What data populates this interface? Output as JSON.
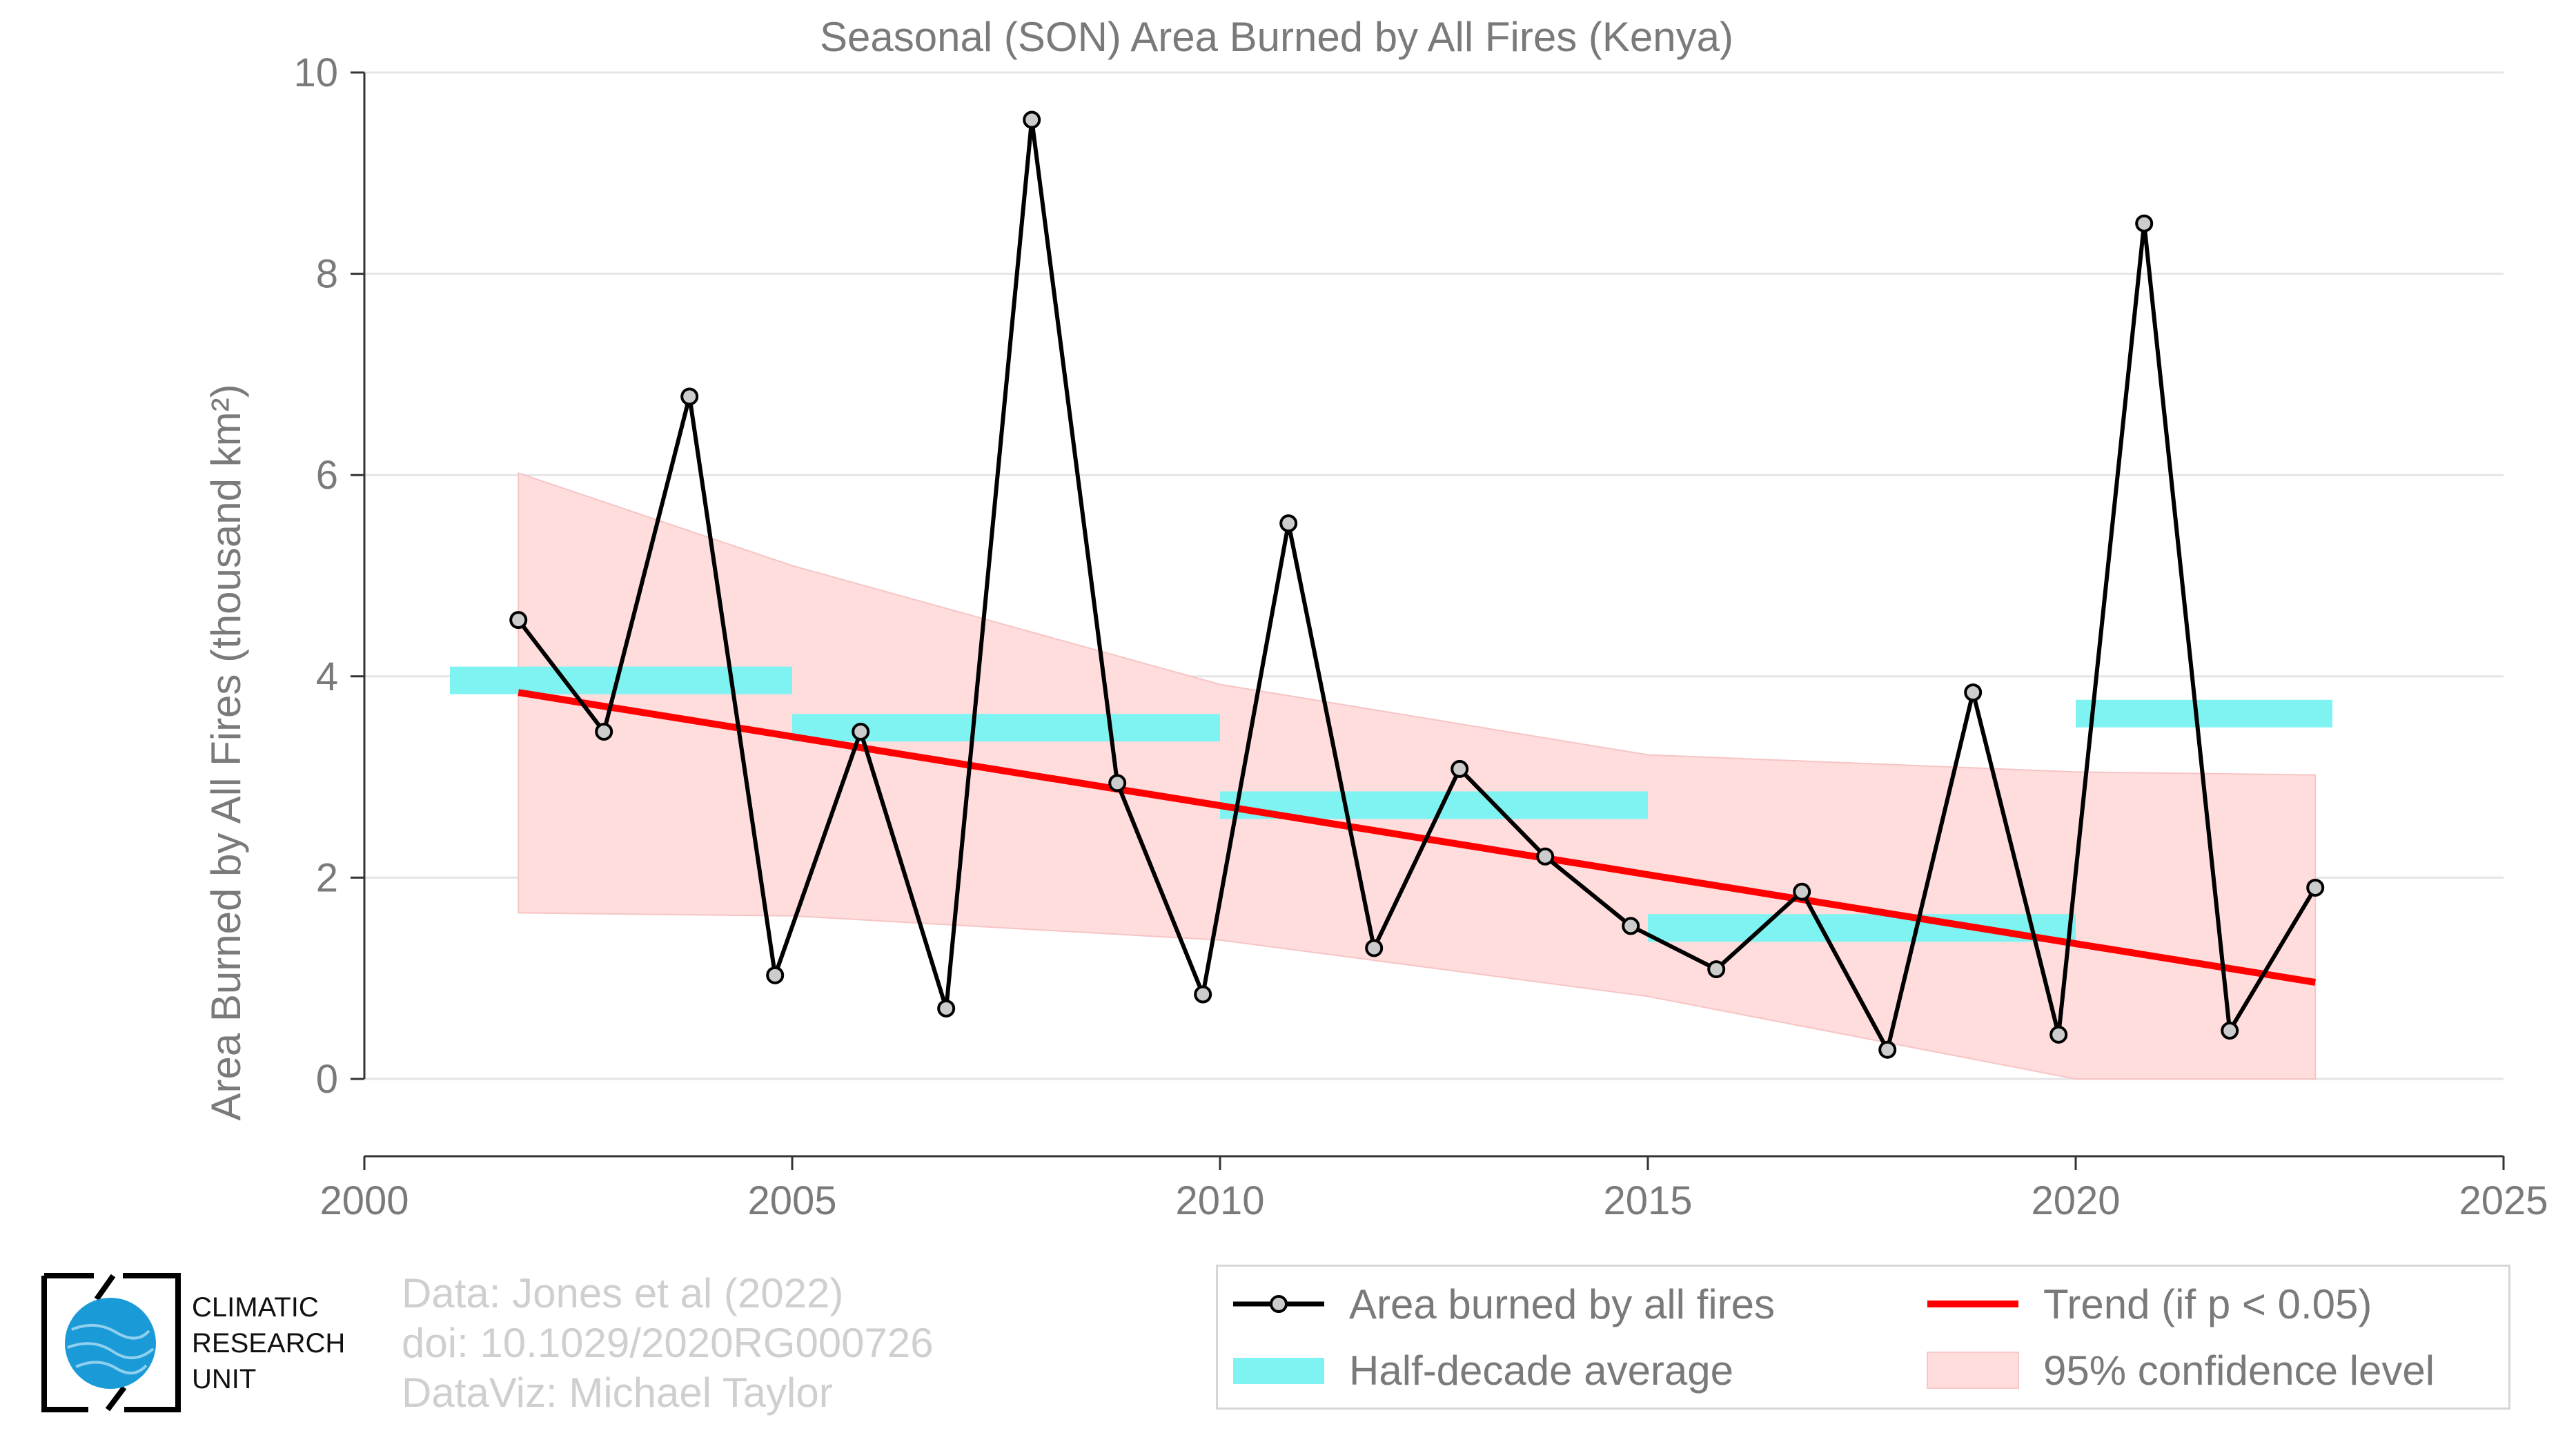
{
  "chart_data": {
    "type": "line",
    "title": "Seasonal (SON) Area Burned by All Fires (Kenya)",
    "ylabel": "Area Burned by All Fires (thousand km²)",
    "xlabel": "",
    "xlim": [
      2000,
      2025
    ],
    "ylim": [
      0,
      10
    ],
    "x_ticks": [
      "2000",
      "2005",
      "2010",
      "2015",
      "2020",
      "2025"
    ],
    "y_ticks": [
      "0",
      "2",
      "4",
      "6",
      "8",
      "10"
    ],
    "grid": "horizontal",
    "series": [
      {
        "name": "Area burned by all fires",
        "color": "#000000",
        "x": [
          2001.8,
          2002.8,
          2003.8,
          2004.8,
          2005.8,
          2006.8,
          2007.8,
          2008.8,
          2009.8,
          2010.8,
          2011.8,
          2012.8,
          2013.8,
          2014.8,
          2015.8,
          2016.8,
          2017.8,
          2018.8,
          2019.8,
          2020.8,
          2021.8,
          2022.8
        ],
        "y": [
          4.56,
          3.45,
          6.78,
          1.03,
          3.45,
          0.7,
          9.53,
          2.94,
          0.84,
          5.52,
          1.3,
          3.08,
          2.21,
          1.52,
          1.09,
          1.86,
          0.29,
          3.84,
          0.44,
          8.5,
          0.48,
          1.9
        ]
      },
      {
        "name": "Half-decade average",
        "color": "#7ef3f1",
        "segments": [
          {
            "x": [
              2001,
              2005
            ],
            "y": 3.96
          },
          {
            "x": [
              2005,
              2010
            ],
            "y": 3.49
          },
          {
            "x": [
              2010,
              2015
            ],
            "y": 2.72
          },
          {
            "x": [
              2015,
              2020
            ],
            "y": 1.5
          },
          {
            "x": [
              2020,
              2023
            ],
            "y": 3.63
          }
        ]
      },
      {
        "name": "Trend (if p < 0.05)",
        "color": "#ff0000",
        "x": [
          2001.8,
          2022.8
        ],
        "y": [
          3.84,
          0.96
        ]
      },
      {
        "name": "95% confidence level",
        "color": "#ffdddd",
        "x": [
          2001.8,
          2005,
          2010,
          2015,
          2020,
          2022.8
        ],
        "upper": [
          6.02,
          5.1,
          3.92,
          3.22,
          3.05,
          3.02
        ],
        "lower": [
          1.65,
          1.62,
          1.38,
          0.82,
          0.0,
          0.0
        ]
      }
    ]
  },
  "legend": {
    "items": [
      {
        "label": "Area burned by all fires"
      },
      {
        "label": "Trend (if p < 0.05)"
      },
      {
        "label": "Half-decade average"
      },
      {
        "label": "95% confidence level"
      }
    ]
  },
  "credits": {
    "line1": "Data: Jones et al (2022)",
    "line2": "doi: 10.1029/2020RG000726",
    "line3": "DataViz: Michael Taylor"
  },
  "organization": {
    "line1": "CLIMATIC",
    "line2": "RESEARCH",
    "line3": "UNIT"
  },
  "colors": {
    "line": "#000000",
    "marker_fill": "#cccccc",
    "half_decade": "#7ef3f1",
    "trend": "#ff0000",
    "confidence": "#ffdddd",
    "text": "#7a7a7a",
    "grid": "#e5e5e5",
    "logo_globe": "#1a9bd7"
  }
}
